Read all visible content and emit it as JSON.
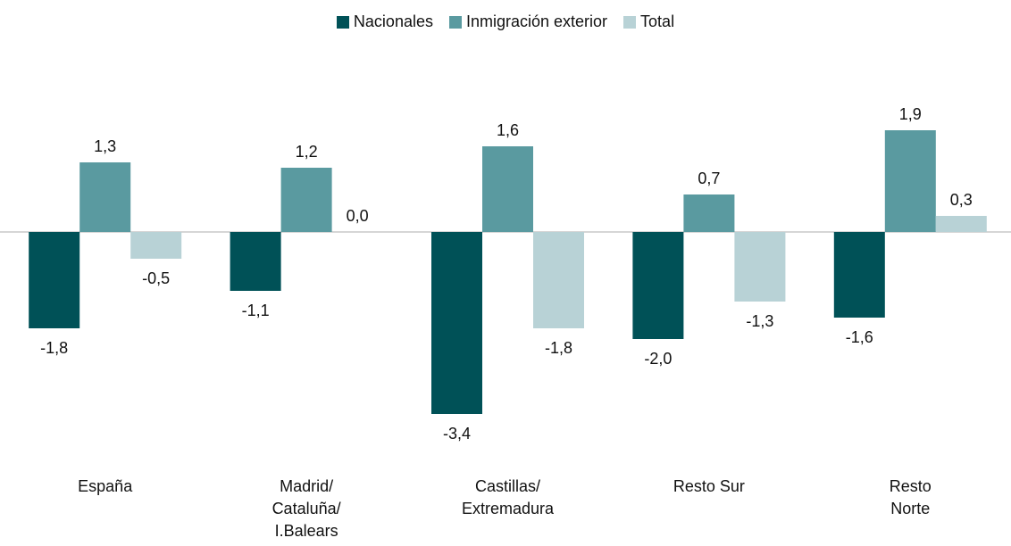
{
  "chart_data": {
    "type": "bar",
    "categories": [
      "España",
      "Madrid/\nCataluña/\nI.Balears",
      "Castillas/\nExtremadura",
      "Resto Sur",
      "Resto\nNorte"
    ],
    "series": [
      {
        "name": "Nacionales",
        "color": "#005157",
        "values": [
          -1.8,
          -1.1,
          -3.4,
          -2.0,
          -1.6
        ],
        "value_labels": [
          "-1,8",
          "-1,1",
          "-3,4",
          "-2,0",
          "-1,6"
        ]
      },
      {
        "name": "Inmigración exterior",
        "color": "#5a9aa0",
        "values": [
          1.3,
          1.2,
          1.6,
          0.7,
          1.9
        ],
        "value_labels": [
          "1,3",
          "1,2",
          "1,6",
          "0,7",
          "1,9"
        ]
      },
      {
        "name": "Total",
        "color": "#b8d2d6",
        "values": [
          -0.5,
          0.0,
          -1.8,
          -1.3,
          0.3
        ],
        "value_labels": [
          "-0,5",
          "0,0",
          "-1,8",
          "-1,3",
          "0,3"
        ]
      }
    ],
    "ylim": [
      -4,
      2.5
    ],
    "legend": "top"
  }
}
